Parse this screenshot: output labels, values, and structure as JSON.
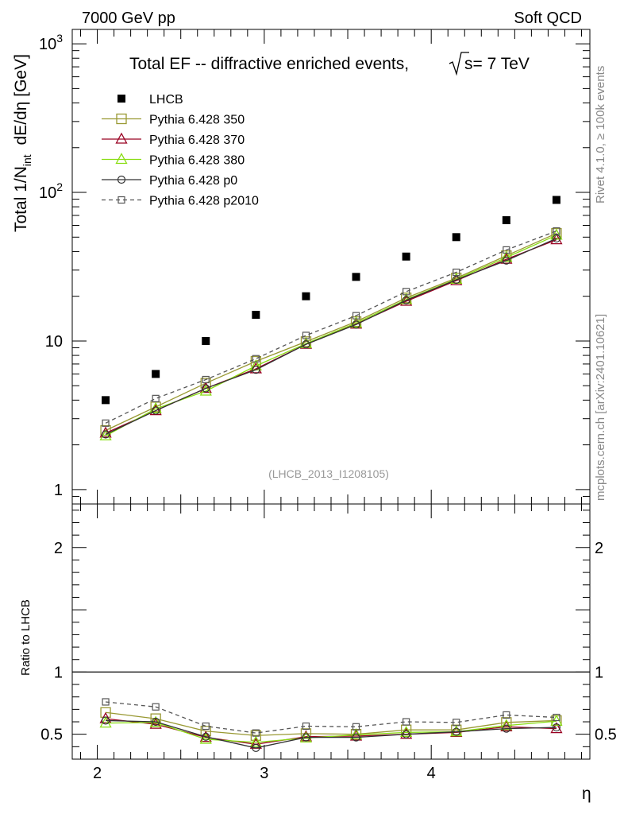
{
  "header": {
    "left": "7000 GeV pp",
    "right": "Soft QCD"
  },
  "side_labels": {
    "rivet": "Rivet 4.1.0, ≥ 100k events",
    "mcplots": "mcplots.cern.ch [arXiv:2401.10621]"
  },
  "chart_data": [
    {
      "type": "scatter",
      "title": "Total EF -- diffractive enriched events,",
      "title_energy": "s= 7 TeV",
      "ylabel": "Total 1/N_int  dE/dη [GeV]",
      "xlabel": "",
      "yscale": "log",
      "ylim": [
        0.8,
        1250
      ],
      "xlim": [
        1.85,
        4.95
      ],
      "yticks": [
        1,
        10,
        100,
        1000
      ],
      "ytick_labels": [
        "1",
        "10",
        "10^2",
        "10^3"
      ],
      "watermark": "(LHCB_2013_I1208105)",
      "x": [
        2.05,
        2.35,
        2.65,
        2.95,
        3.25,
        3.55,
        3.85,
        4.15,
        4.45,
        4.75
      ],
      "series": [
        {
          "name": "LHCB",
          "color": "#000000",
          "marker": "filled-square",
          "line": "none",
          "values": [
            4.0,
            6.0,
            10.0,
            15.0,
            20.0,
            27.0,
            37.0,
            50.0,
            65.0,
            89.0
          ]
        },
        {
          "name": "Pythia 6.428 350",
          "color": "#999933",
          "marker": "open-square",
          "line": "solid",
          "values": [
            2.5,
            3.6,
            5.2,
            7.3,
            9.9,
            13.5,
            19.5,
            26.5,
            37.5,
            53.0
          ]
        },
        {
          "name": "Pythia 6.428 370",
          "color": "#990022",
          "marker": "open-triangle",
          "line": "solid",
          "values": [
            2.4,
            3.4,
            4.8,
            6.5,
            9.5,
            13.0,
            18.5,
            25.5,
            35.5,
            48.0
          ]
        },
        {
          "name": "Pythia 6.428 380",
          "color": "#88dd11",
          "marker": "open-triangle",
          "line": "solid",
          "values": [
            2.3,
            3.5,
            4.6,
            6.8,
            9.6,
            13.2,
            19.0,
            26.0,
            36.5,
            51.5
          ]
        },
        {
          "name": "Pythia 6.428 p0",
          "color": "#333333",
          "marker": "open-circle",
          "line": "solid",
          "values": [
            2.35,
            3.4,
            4.8,
            6.4,
            9.5,
            12.9,
            18.8,
            25.8,
            34.8,
            49.0
          ]
        },
        {
          "name": "Pythia 6.428 p2010",
          "color": "#555555",
          "marker": "open-square-small",
          "line": "dashed",
          "values": [
            2.8,
            4.1,
            5.5,
            7.6,
            10.9,
            14.8,
            21.5,
            29.0,
            41.0,
            55.0
          ]
        }
      ]
    },
    {
      "type": "line",
      "ylabel": "Ratio to LHCB",
      "xlabel": "η",
      "ylim": [
        0.3,
        2.35
      ],
      "xlim": [
        1.85,
        4.95
      ],
      "yticks": [
        0.5,
        1,
        2
      ],
      "ytick_labels": [
        "0.5",
        "1",
        "2"
      ],
      "xticks": [
        2,
        3,
        4
      ],
      "xtick_labels": [
        "2",
        "3",
        "4"
      ],
      "reference_line": 1,
      "x": [
        2.05,
        2.35,
        2.65,
        2.95,
        3.25,
        3.55,
        3.85,
        4.15,
        4.45,
        4.75
      ],
      "series": [
        {
          "name": "Pythia 6.428 350",
          "color": "#999933",
          "marker": "open-square",
          "line": "solid",
          "values": [
            0.675,
            0.625,
            0.525,
            0.49,
            0.505,
            0.5,
            0.535,
            0.535,
            0.595,
            0.61
          ]
        },
        {
          "name": "Pythia 6.428 370",
          "color": "#990022",
          "marker": "open-triangle",
          "line": "solid",
          "values": [
            0.625,
            0.58,
            0.475,
            0.42,
            0.48,
            0.485,
            0.5,
            0.515,
            0.56,
            0.545
          ]
        },
        {
          "name": "Pythia 6.428 380",
          "color": "#88dd11",
          "marker": "open-triangle",
          "line": "solid",
          "values": [
            0.59,
            0.595,
            0.46,
            0.435,
            0.47,
            0.495,
            0.515,
            0.52,
            0.57,
            0.605
          ]
        },
        {
          "name": "Pythia 6.428 p0",
          "color": "#333333",
          "marker": "open-circle",
          "line": "solid",
          "values": [
            0.61,
            0.6,
            0.48,
            0.39,
            0.475,
            0.475,
            0.5,
            0.52,
            0.545,
            0.555
          ]
        },
        {
          "name": "Pythia 6.428 p2010",
          "color": "#555555",
          "marker": "open-square-small",
          "line": "dashed",
          "values": [
            0.76,
            0.72,
            0.565,
            0.51,
            0.565,
            0.56,
            0.6,
            0.595,
            0.655,
            0.635
          ]
        }
      ]
    }
  ]
}
